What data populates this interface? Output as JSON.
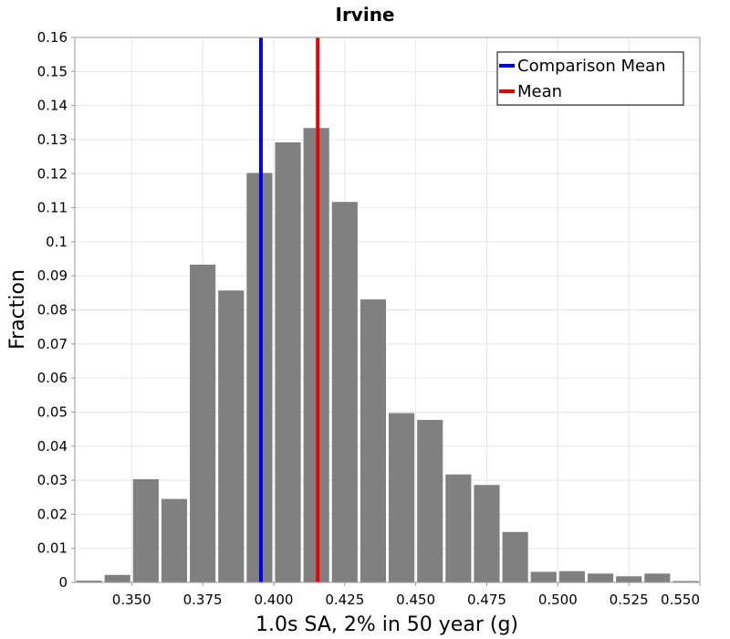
{
  "chart_data": {
    "type": "bar",
    "title": "Irvine",
    "xlabel": "1.0s SA, 2% in 50 year (g)",
    "ylabel": "Fraction",
    "xlim": [
      0.33,
      0.55
    ],
    "ylim": [
      0,
      0.16
    ],
    "xticks": [
      "0.350",
      "0.375",
      "0.400",
      "0.425",
      "0.450",
      "0.475",
      "0.500",
      "0.525",
      "0.550"
    ],
    "xtick_values": [
      0.35,
      0.375,
      0.4,
      0.425,
      0.45,
      0.475,
      0.5,
      0.525,
      0.55
    ],
    "yticks": [
      "0",
      "0.01",
      "0.02",
      "0.03",
      "0.04",
      "0.05",
      "0.06",
      "0.07",
      "0.08",
      "0.09",
      "0.1",
      "0.11",
      "0.12",
      "0.13",
      "0.14",
      "0.15",
      "0.16"
    ],
    "ytick_values": [
      0,
      0.01,
      0.02,
      0.03,
      0.04,
      0.05,
      0.06,
      0.07,
      0.08,
      0.09,
      0.1,
      0.11,
      0.12,
      0.13,
      0.14,
      0.15,
      0.16
    ],
    "bin_width": 0.01,
    "bins": [
      {
        "x": 0.33,
        "value": 0.0005
      },
      {
        "x": 0.34,
        "value": 0.0022
      },
      {
        "x": 0.35,
        "value": 0.0303
      },
      {
        "x": 0.36,
        "value": 0.0245
      },
      {
        "x": 0.37,
        "value": 0.0933
      },
      {
        "x": 0.38,
        "value": 0.0857
      },
      {
        "x": 0.39,
        "value": 0.1202
      },
      {
        "x": 0.4,
        "value": 0.1292
      },
      {
        "x": 0.41,
        "value": 0.1334
      },
      {
        "x": 0.42,
        "value": 0.1117
      },
      {
        "x": 0.43,
        "value": 0.0831
      },
      {
        "x": 0.44,
        "value": 0.0497
      },
      {
        "x": 0.45,
        "value": 0.0477
      },
      {
        "x": 0.46,
        "value": 0.0317
      },
      {
        "x": 0.47,
        "value": 0.0286
      },
      {
        "x": 0.48,
        "value": 0.0148
      },
      {
        "x": 0.49,
        "value": 0.0031
      },
      {
        "x": 0.5,
        "value": 0.0033
      },
      {
        "x": 0.51,
        "value": 0.0026
      },
      {
        "x": 0.52,
        "value": 0.0018
      },
      {
        "x": 0.53,
        "value": 0.0026
      },
      {
        "x": 0.54,
        "value": 0.0004
      }
    ],
    "vertical_lines": [
      {
        "name": "Comparison Mean",
        "x": 0.3955,
        "color": "#0000ee"
      },
      {
        "name": "Mean",
        "x": 0.4155,
        "color": "#ee0000"
      }
    ],
    "bar_color": "#808080",
    "grid": true,
    "legend_position": "top-right"
  }
}
